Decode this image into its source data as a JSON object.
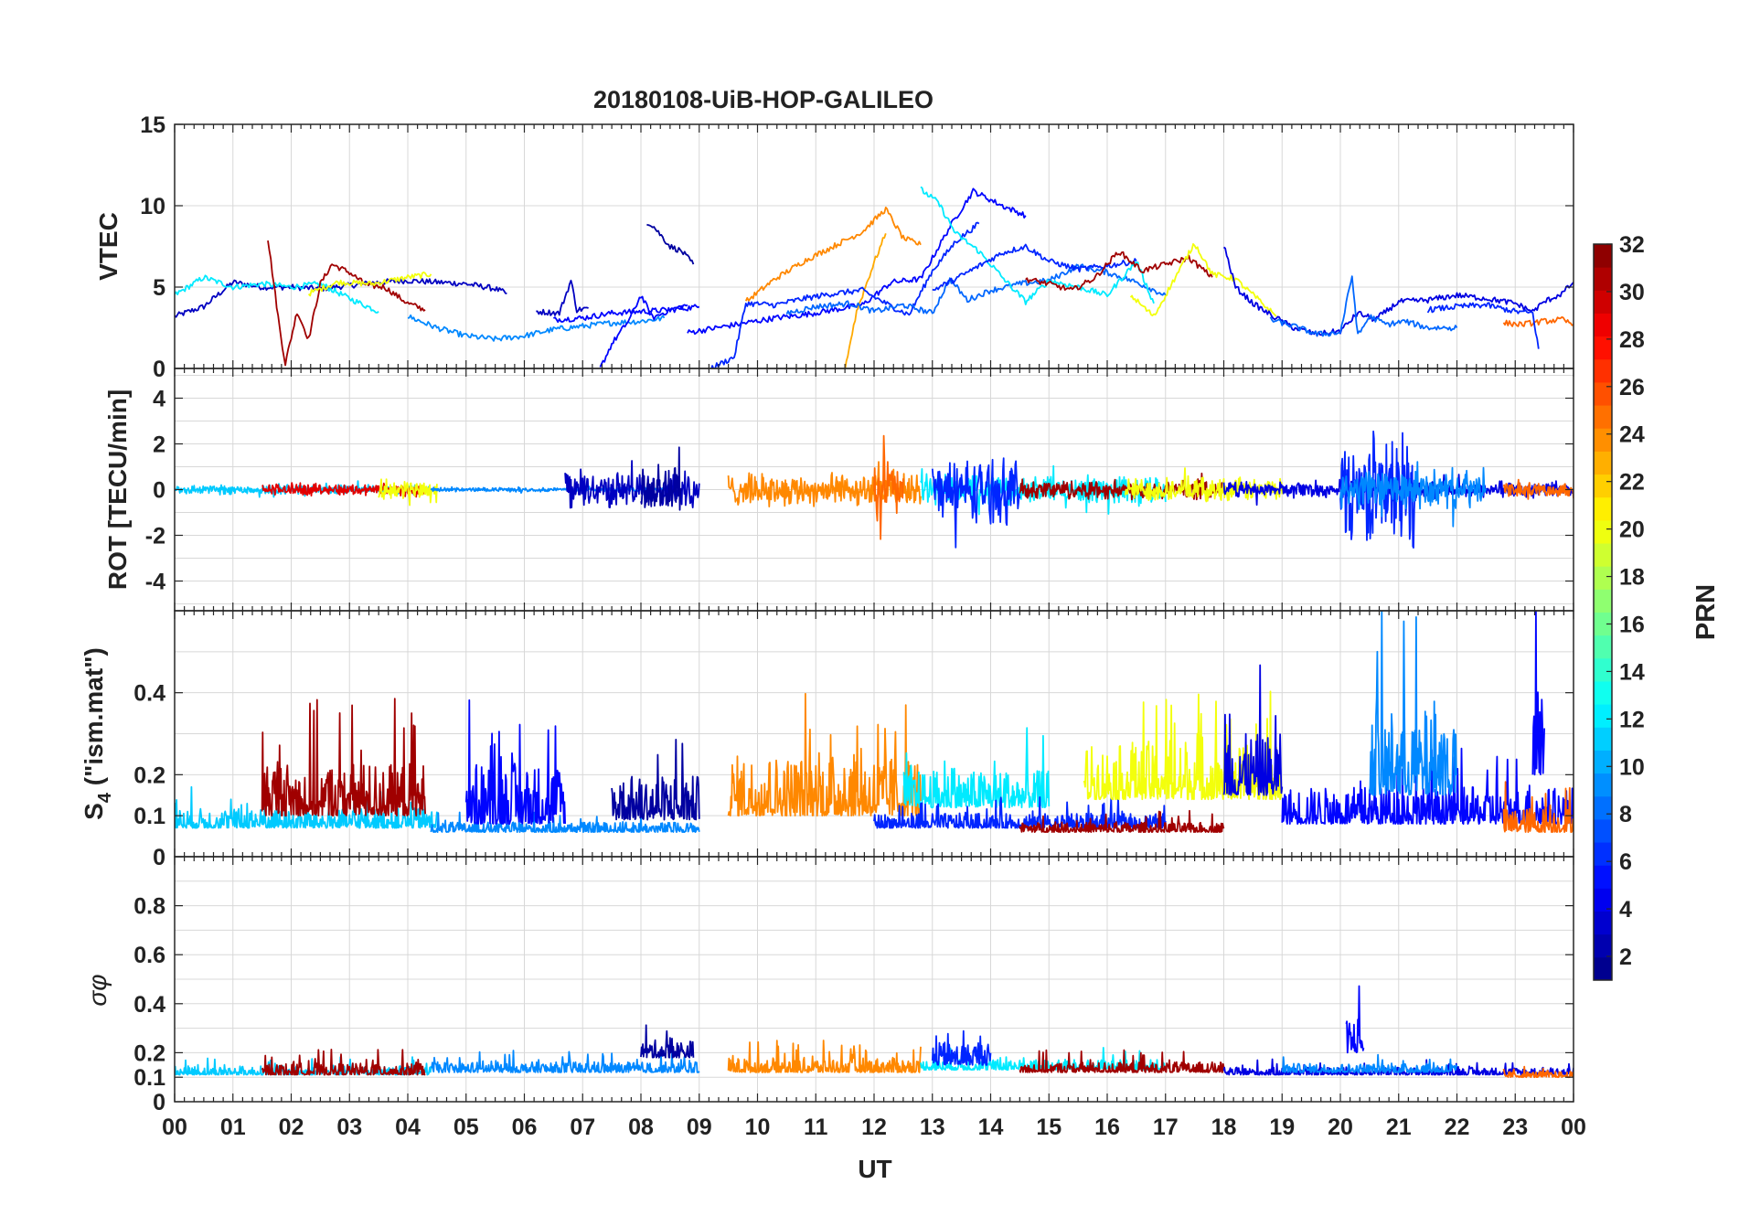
{
  "title": "20180108-UiB-HOP-GALILEO",
  "colors": {
    "axis": "#262626",
    "grid": "#d8d8d8"
  },
  "chart_data": {
    "type": "line",
    "title": "20180108-UiB-HOP-GALILEO",
    "xlabel": "UT",
    "xlim": [
      0,
      24
    ],
    "x_tick_labels": [
      "00",
      "01",
      "02",
      "03",
      "04",
      "05",
      "06",
      "07",
      "08",
      "09",
      "10",
      "11",
      "12",
      "13",
      "14",
      "15",
      "16",
      "17",
      "18",
      "19",
      "20",
      "21",
      "22",
      "23",
      "00"
    ],
    "colorbar": {
      "label": "PRN",
      "range": [
        1,
        32
      ],
      "tick_labels": [
        "2",
        "4",
        "6",
        "8",
        "10",
        "12",
        "14",
        "16",
        "18",
        "20",
        "22",
        "24",
        "26",
        "28",
        "30",
        "32"
      ],
      "tick_values": [
        2,
        4,
        6,
        8,
        10,
        12,
        14,
        16,
        18,
        20,
        22,
        24,
        26,
        28,
        30,
        32
      ]
    },
    "panels": [
      {
        "id": "vtec",
        "ylabel": "VTEC",
        "ylim": [
          0,
          15
        ],
        "y_tick_labels": [
          "0",
          "5",
          "10",
          "15"
        ],
        "y_tick_values": [
          0,
          5,
          10,
          15
        ],
        "series": [
          {
            "prn": 3,
            "x": [
              0.0,
              0.5,
              1.0,
              1.5,
              2.0,
              2.5,
              3.0,
              3.5,
              4.0,
              4.5,
              5.0,
              5.5,
              5.7
            ],
            "y": [
              3.2,
              3.8,
              5.3,
              5.0,
              5.0,
              4.9,
              5.1,
              5.3,
              5.4,
              5.3,
              5.2,
              4.9,
              4.6
            ]
          },
          {
            "prn": 12,
            "x": [
              0.0,
              0.5,
              1.0,
              1.5,
              2.0,
              2.5,
              3.0,
              3.5
            ],
            "y": [
              4.5,
              5.6,
              5.0,
              5.2,
              5.0,
              5.2,
              4.3,
              3.5
            ]
          },
          {
            "prn": 31,
            "x": [
              1.6,
              1.8,
              1.9,
              2.1,
              2.3,
              2.5,
              2.7,
              3.0,
              3.3,
              3.6,
              4.0,
              4.3
            ],
            "y": [
              8.0,
              2.5,
              0.3,
              3.5,
              1.8,
              5.2,
              6.4,
              5.9,
              5.1,
              5.0,
              4.0,
              3.6
            ]
          },
          {
            "prn": 20,
            "x": [
              2.3,
              2.8,
              3.4,
              4.0,
              4.4
            ],
            "y": [
              4.6,
              5.3,
              5.2,
              5.6,
              5.8
            ]
          },
          {
            "prn": 9,
            "x": [
              4.0,
              4.5,
              5.0,
              5.5,
              6.0,
              6.5,
              7.0,
              7.5,
              8.0,
              8.4
            ],
            "y": [
              3.2,
              2.5,
              2.0,
              1.8,
              2.0,
              2.4,
              2.6,
              2.8,
              2.9,
              3.1
            ]
          },
          {
            "prn": 3,
            "x": [
              6.2,
              6.6,
              6.8,
              6.9,
              7.1
            ],
            "y": [
              3.5,
              3.4,
              5.4,
              3.6,
              3.7
            ]
          },
          {
            "prn": 5,
            "x": [
              6.5,
              7.0,
              7.5,
              8.0,
              8.5,
              9.0
            ],
            "y": [
              3.0,
              3.1,
              3.4,
              3.5,
              3.6,
              3.8
            ]
          },
          {
            "prn": 2,
            "x": [
              8.1,
              8.2,
              8.5,
              8.7,
              8.9
            ],
            "y": [
              9.0,
              8.8,
              7.5,
              7.2,
              6.4
            ]
          },
          {
            "prn": 5,
            "x": [
              7.3,
              7.5,
              7.8,
              8.0,
              8.2,
              8.5,
              8.8
            ],
            "y": [
              0.0,
              1.5,
              3.0,
              4.5,
              3.1,
              3.6,
              3.9
            ]
          },
          {
            "prn": 5,
            "x": [
              8.8,
              9.3,
              9.8,
              10.3,
              10.8,
              11.3,
              11.8,
              12.3,
              12.8,
              13.3,
              13.7,
              14.2,
              14.6
            ],
            "y": [
              2.2,
              2.5,
              2.8,
              3.1,
              3.3,
              3.6,
              3.9,
              5.3,
              5.5,
              8.7,
              10.9,
              10.0,
              9.4
            ]
          },
          {
            "prn": 24,
            "x": [
              9.8,
              10.3,
              10.8,
              11.3,
              11.8,
              12.2,
              12.5,
              12.8
            ],
            "y": [
              4.1,
              5.5,
              6.6,
              7.5,
              8.4,
              9.8,
              8.0,
              7.6
            ]
          },
          {
            "prn": 23,
            "x": [
              11.5,
              11.7,
              12.0,
              12.2
            ],
            "y": [
              0.0,
              3.5,
              6.5,
              8.3
            ]
          },
          {
            "prn": 6,
            "x": [
              9.2,
              9.6,
              9.8,
              10.3,
              10.8,
              11.3,
              11.8,
              12.3,
              12.6,
              13.0,
              13.4,
              13.8
            ],
            "y": [
              0.0,
              0.7,
              4.0,
              3.9,
              4.3,
              4.6,
              4.8,
              3.8,
              3.3,
              6.0,
              7.8,
              8.9
            ]
          },
          {
            "prn": 8,
            "x": [
              10.5,
              11.0,
              11.6,
              12.0,
              12.5,
              13.0,
              13.3,
              13.6,
              14.0,
              14.5,
              15.0,
              15.5,
              16.0,
              16.5,
              17.0
            ],
            "y": [
              3.4,
              3.8,
              4.0,
              3.5,
              3.9,
              3.4,
              5.5,
              4.2,
              4.8,
              5.2,
              5.4,
              6.3,
              5.9,
              5.3,
              4.5
            ]
          },
          {
            "prn": 12,
            "x": [
              12.8,
              13.1,
              13.4,
              13.8,
              14.2,
              14.6,
              15.0,
              15.5,
              16.0,
              16.5,
              16.8
            ],
            "y": [
              11.0,
              10.2,
              8.3,
              7.2,
              5.6,
              4.1,
              5.4,
              5.0,
              4.5,
              6.6,
              4.0
            ]
          },
          {
            "prn": 6,
            "x": [
              13.0,
              13.4,
              13.8,
              14.2,
              14.6,
              15.0,
              15.5,
              16.0,
              16.5
            ],
            "y": [
              4.8,
              5.5,
              6.3,
              7.1,
              7.5,
              6.6,
              6.1,
              6.3,
              6.6
            ]
          },
          {
            "prn": 31,
            "x": [
              14.6,
              15.0,
              15.4,
              15.8,
              16.2,
              16.6,
              17.0,
              17.4,
              17.8
            ],
            "y": [
              5.5,
              5.2,
              4.8,
              5.6,
              7.2,
              6.0,
              6.4,
              6.8,
              5.6
            ]
          },
          {
            "prn": 20,
            "x": [
              16.4,
              16.8,
              17.2,
              17.5,
              17.8,
              18.2,
              18.6,
              18.9
            ],
            "y": [
              4.5,
              3.2,
              5.8,
              7.7,
              5.8,
              5.5,
              4.2,
              3.2
            ]
          },
          {
            "prn": 4,
            "x": [
              18.0,
              18.2,
              18.5,
              18.8,
              19.2,
              19.6,
              20.0,
              20.3,
              20.6,
              21.0,
              21.5,
              22.0,
              22.5,
              23.0,
              23.3,
              23.5,
              23.8,
              24.0
            ],
            "y": [
              7.6,
              5.0,
              4.0,
              3.3,
              2.5,
              2.1,
              2.3,
              3.4,
              3.0,
              4.1,
              4.2,
              4.5,
              4.3,
              4.0,
              3.5,
              4.1,
              4.6,
              5.3
            ]
          },
          {
            "prn": 8,
            "x": [
              18.8,
              19.2,
              19.6,
              20.0,
              20.2,
              20.3,
              20.5,
              20.8,
              21.1,
              21.5,
              22.0
            ],
            "y": [
              3.0,
              2.6,
              2.1,
              2.2,
              5.7,
              2.0,
              3.2,
              2.7,
              2.9,
              2.5,
              2.5
            ]
          },
          {
            "prn": 25,
            "x": [
              22.8,
              23.1,
              23.5,
              23.8,
              24.0
            ],
            "y": [
              2.8,
              2.7,
              2.9,
              3.0,
              2.7
            ]
          },
          {
            "prn": 6,
            "x": [
              21.5,
              22.0,
              22.5,
              23.0,
              23.3,
              23.4
            ],
            "y": [
              3.6,
              3.8,
              3.9,
              3.5,
              3.4,
              1.2
            ]
          }
        ]
      },
      {
        "id": "rot",
        "ylabel": "ROT [TECU/min]",
        "ylim": [
          -5.3,
          5.3
        ],
        "y_tick_labels": [
          "-4",
          "-2",
          "0",
          "2",
          "4"
        ],
        "y_tick_values": [
          -4,
          -2,
          0,
          2,
          4
        ],
        "series": [
          {
            "prn": 11,
            "x": [
              0.0,
              4.4
            ],
            "amp": 0.25
          },
          {
            "prn": 29,
            "x": [
              1.5,
              4.3
            ],
            "amp": 0.3
          },
          {
            "prn": 20,
            "x": [
              3.5,
              4.5
            ],
            "amp": 0.5
          },
          {
            "prn": 9,
            "x": [
              4.4,
              8.5
            ],
            "amp": 0.1
          },
          {
            "prn": 3,
            "x": [
              6.7,
              9.0
            ],
            "amp": 0.9
          },
          {
            "prn": 2,
            "x": [
              8.0,
              8.7
            ],
            "amp": 1.7
          },
          {
            "prn": 24,
            "x": [
              9.5,
              12.8
            ],
            "amp": 0.8
          },
          {
            "prn": 25,
            "x": [
              12.0,
              12.5
            ],
            "amp": 1.8
          },
          {
            "prn": 12,
            "x": [
              12.8,
              17.0
            ],
            "amp": 0.7
          },
          {
            "prn": 6,
            "x": [
              13.0,
              14.5
            ],
            "amp": 1.6
          },
          {
            "prn": 31,
            "x": [
              14.5,
              18.0
            ],
            "amp": 0.5
          },
          {
            "prn": 20,
            "x": [
              16.3,
              19.0
            ],
            "amp": 0.6
          },
          {
            "prn": 4,
            "x": [
              18.0,
              24.0
            ],
            "amp": 0.4
          },
          {
            "prn": 6,
            "x": [
              20.0,
              21.3
            ],
            "amp": 2.6
          },
          {
            "prn": 9,
            "x": [
              20.0,
              22.5
            ],
            "amp": 1.0
          },
          {
            "prn": 25,
            "x": [
              22.8,
              24.0
            ],
            "amp": 0.35
          }
        ]
      },
      {
        "id": "s4",
        "ylabel": "S4 (\"ism.mat\")",
        "ylabel_main": "S",
        "ylabel_sub": "4",
        "ylabel_rest": " (\"ism.mat\")",
        "ylim": [
          0,
          0.6
        ],
        "y_tick_labels": [
          "0",
          "0.1",
          "0.2",
          "0.4"
        ],
        "y_tick_values": [
          0,
          0.1,
          0.2,
          0.4
        ],
        "series": [
          {
            "prn": 11,
            "x": [
              0.0,
              4.5
            ],
            "base": 0.07,
            "amp": 0.08
          },
          {
            "prn": 31,
            "x": [
              1.5,
              4.3
            ],
            "base": 0.1,
            "amp": 0.22
          },
          {
            "prn": 9,
            "x": [
              4.4,
              9.0
            ],
            "base": 0.06,
            "amp": 0.04
          },
          {
            "prn": 5,
            "x": [
              5.0,
              6.7
            ],
            "base": 0.08,
            "amp": 0.25
          },
          {
            "prn": 2,
            "x": [
              7.5,
              9.0
            ],
            "base": 0.09,
            "amp": 0.18
          },
          {
            "prn": 24,
            "x": [
              9.5,
              12.8
            ],
            "base": 0.1,
            "amp": 0.25
          },
          {
            "prn": 12,
            "x": [
              12.5,
              15.0
            ],
            "base": 0.12,
            "amp": 0.15
          },
          {
            "prn": 6,
            "x": [
              12.0,
              17.0
            ],
            "base": 0.07,
            "amp": 0.06
          },
          {
            "prn": 20,
            "x": [
              15.6,
              19.0
            ],
            "base": 0.14,
            "amp": 0.22
          },
          {
            "prn": 31,
            "x": [
              14.5,
              18.0
            ],
            "base": 0.06,
            "amp": 0.04
          },
          {
            "prn": 4,
            "x": [
              18.0,
              19.0
            ],
            "base": 0.15,
            "amp": 0.25
          },
          {
            "prn": 5,
            "x": [
              19.0,
              24.0
            ],
            "base": 0.08,
            "amp": 0.15
          },
          {
            "prn": 9,
            "x": [
              20.5,
              22.0
            ],
            "base": 0.15,
            "amp": 0.35
          },
          {
            "prn": 25,
            "x": [
              22.8,
              24.0
            ],
            "base": 0.06,
            "amp": 0.1
          },
          {
            "prn": 5,
            "x": [
              23.3,
              23.5
            ],
            "base": 0.2,
            "amp": 0.4
          }
        ]
      },
      {
        "id": "sigma_phi",
        "ylabel": "σφ",
        "ylim": [
          0,
          1
        ],
        "y_tick_labels": [
          "0",
          "0.1",
          "0.2",
          "0.4",
          "0.6",
          "0.8"
        ],
        "y_tick_values": [
          0,
          0.1,
          0.2,
          0.4,
          0.6,
          0.8
        ],
        "series": [
          {
            "prn": 11,
            "x": [
              0.0,
              4.4
            ],
            "base": 0.11,
            "amp": 0.06
          },
          {
            "prn": 31,
            "x": [
              1.5,
              4.3
            ],
            "base": 0.11,
            "amp": 0.08
          },
          {
            "prn": 9,
            "x": [
              4.4,
              9.0
            ],
            "base": 0.12,
            "amp": 0.07
          },
          {
            "prn": 2,
            "x": [
              8.0,
              8.9
            ],
            "base": 0.18,
            "amp": 0.12
          },
          {
            "prn": 24,
            "x": [
              9.5,
              12.8
            ],
            "base": 0.12,
            "amp": 0.1
          },
          {
            "prn": 12,
            "x": [
              12.8,
              17.0
            ],
            "base": 0.13,
            "amp": 0.07
          },
          {
            "prn": 6,
            "x": [
              13.0,
              14.0
            ],
            "base": 0.15,
            "amp": 0.15
          },
          {
            "prn": 31,
            "x": [
              14.5,
              18.0
            ],
            "base": 0.12,
            "amp": 0.07
          },
          {
            "prn": 4,
            "x": [
              18.0,
              24.0
            ],
            "base": 0.11,
            "amp": 0.05
          },
          {
            "prn": 5,
            "x": [
              20.1,
              20.4
            ],
            "base": 0.2,
            "amp": 0.25
          },
          {
            "prn": 9,
            "x": [
              19.0,
              22.0
            ],
            "base": 0.12,
            "amp": 0.06
          },
          {
            "prn": 25,
            "x": [
              22.8,
              24.0
            ],
            "base": 0.1,
            "amp": 0.04
          }
        ]
      }
    ]
  }
}
